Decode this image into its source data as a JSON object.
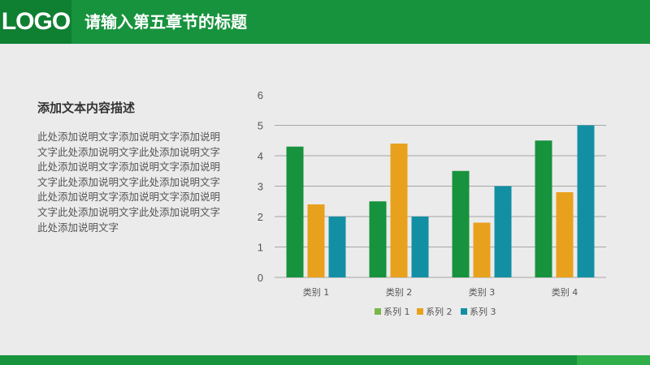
{
  "header": {
    "logo": "LOGO",
    "title": "请输入第五章节的标题"
  },
  "content": {
    "title": "添加文本内容描述",
    "body": "此处添加说明文字添加说明文字添加说明文字此处添加说明文字此处添加说明文字此处添加说明文字添加说明文字添加说明文字此处添加说明文字此处添加说明文字此处添加说明文字添加说明文字添加说明文字此处添加说明文字此处添加说明文字此处添加说明文字"
  },
  "colors": {
    "header": "#17923d",
    "logo_box": "#0f7f32",
    "series_1": "#17923d",
    "series_2": "#e8a11c",
    "series_3": "#138fa4",
    "legend_1": "#7ab648"
  },
  "chart_data": {
    "type": "bar",
    "categories": [
      "类别 1",
      "类别 2",
      "类别 3",
      "类别 4"
    ],
    "series": [
      {
        "name": "系列 1",
        "values": [
          4.3,
          2.5,
          3.5,
          4.5
        ]
      },
      {
        "name": "系列 2",
        "values": [
          2.4,
          4.4,
          1.8,
          2.8
        ]
      },
      {
        "name": "系列 3",
        "values": [
          2.0,
          2.0,
          3.0,
          5.0
        ]
      }
    ],
    "yticks": [
      "0",
      "1",
      "2",
      "3",
      "4",
      "5",
      "6"
    ],
    "ylim": [
      0,
      6
    ],
    "grid": true,
    "legend_position": "bottom"
  }
}
